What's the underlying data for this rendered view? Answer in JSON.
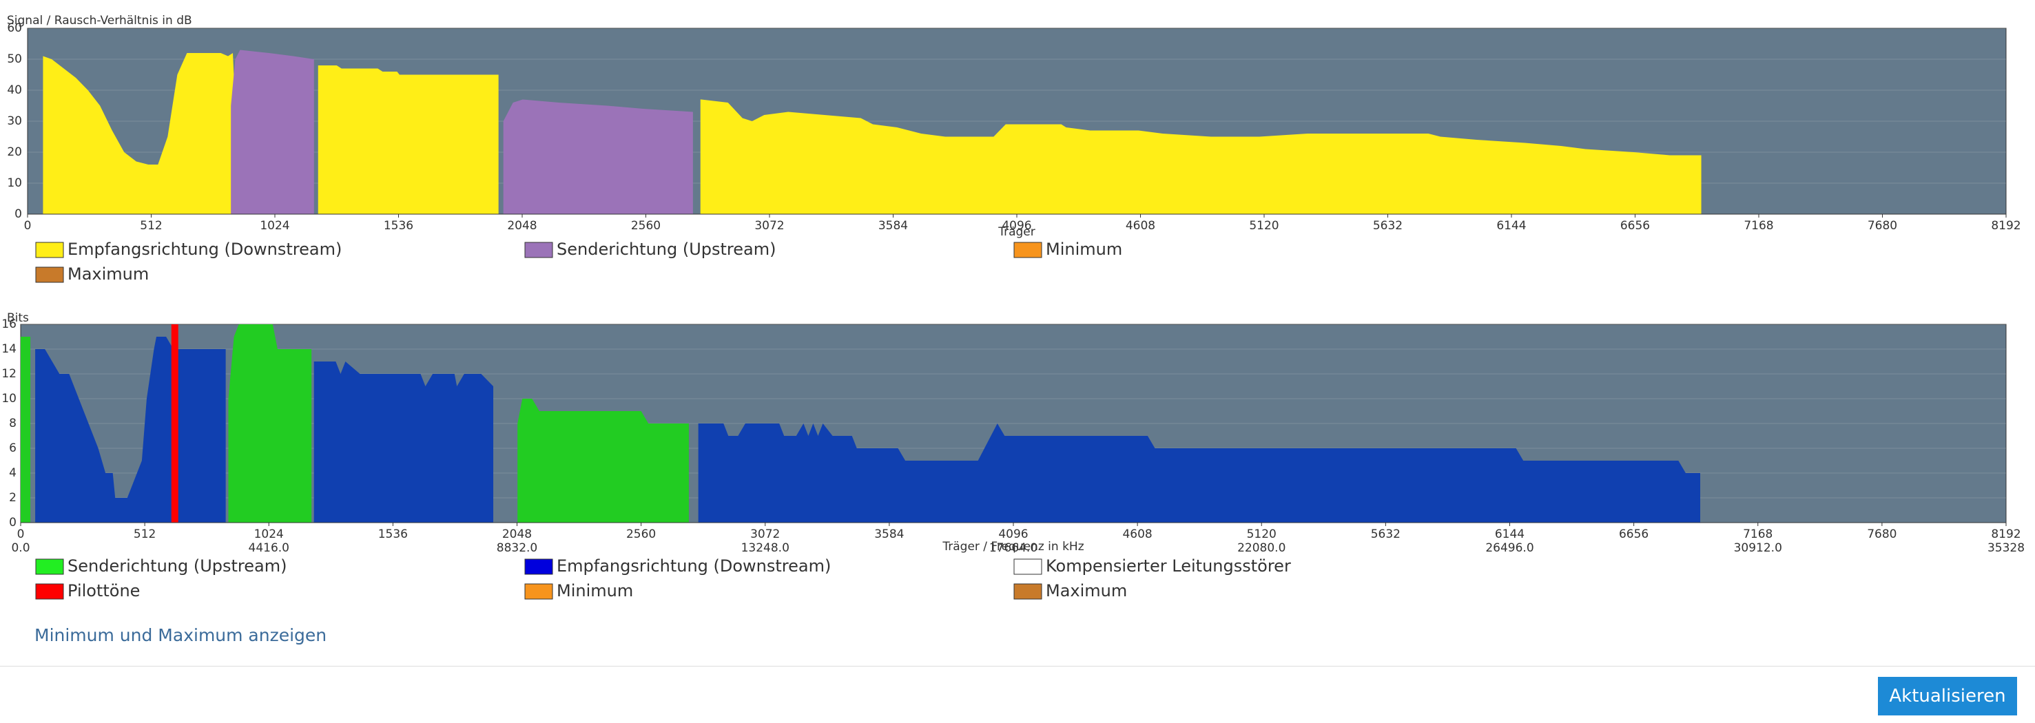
{
  "chart_data": [
    {
      "type": "area",
      "y_label": "Signal / Rausch-Verhältnis in dB",
      "x_label": "Träger",
      "xlim": [
        0,
        8192
      ],
      "xticks": [
        0,
        512,
        1024,
        1536,
        2048,
        2560,
        3072,
        3584,
        4096,
        4608,
        5120,
        5632,
        6144,
        6656,
        7168,
        7680,
        8192
      ],
      "ylim": [
        0,
        60
      ],
      "yticks": [
        0,
        10,
        20,
        30,
        40,
        50,
        60
      ],
      "grid": true,
      "series": [
        {
          "name": "Empfangsrichtung (Downstream)",
          "color": "#ffee17",
          "x": [
            64,
            100,
            150,
            200,
            250,
            300,
            350,
            400,
            450,
            500,
            540,
            580,
            620,
            660,
            800,
            830,
            850,
            854,
            1028,
            1203,
            1210,
            1280,
            1300,
            1450,
            1470,
            1530,
            1540,
            1950,
            2370,
            2786,
            2790,
            2900,
            2960,
            3000,
            3050,
            3150,
            3300,
            3450,
            3500,
            3600,
            3700,
            3800,
            4000,
            4050,
            4280,
            4300,
            4400,
            4600,
            4700,
            4900,
            5100,
            5300,
            5800,
            5850,
            6000,
            6200,
            6350,
            6450,
            6650,
            6800,
            6930
          ],
          "values": [
            51,
            50,
            47,
            44,
            40,
            35,
            27,
            20,
            17,
            16,
            16,
            25,
            45,
            52,
            52,
            51,
            52,
            45,
            null,
            48,
            48,
            48,
            47,
            47,
            46,
            46,
            45,
            45,
            null,
            37,
            37,
            36,
            31,
            30,
            32,
            33,
            32,
            31,
            29,
            28,
            26,
            25,
            25,
            29,
            29,
            28,
            27,
            27,
            26,
            25,
            25,
            26,
            26,
            25,
            24,
            23,
            22,
            21,
            20,
            19,
            19
          ]
        },
        {
          "name": "Senderichtung (Upstream)",
          "color": "#9b73b8",
          "x": [
            842,
            860,
            880,
            1000,
            1100,
            1186,
            1578,
            1970,
            2010,
            2050,
            2200,
            2400,
            2550,
            2755
          ],
          "values": [
            35,
            50,
            53,
            52,
            51,
            50,
            null,
            30,
            36,
            37,
            36,
            35,
            34,
            33
          ]
        },
        {
          "name": "Minimum",
          "color": "#f7941d"
        },
        {
          "name": "Maximum",
          "color": "#c87a2a"
        }
      ]
    },
    {
      "type": "area",
      "y_label": "Bits",
      "x_label": "Träger / Frequenz in kHz",
      "xlim": [
        0,
        8192
      ],
      "xticks": [
        0,
        512,
        1024,
        1536,
        2048,
        2560,
        3072,
        3584,
        4096,
        4608,
        5120,
        5632,
        6144,
        6656,
        7168,
        7680,
        8192
      ],
      "x2lim": [
        0,
        35328
      ],
      "x2ticks": [
        {
          "value": 0,
          "label": "0.0"
        },
        {
          "value": 4416,
          "label": "4416.0"
        },
        {
          "value": 8832,
          "label": "8832.0"
        },
        {
          "value": 13248,
          "label": "13248.0"
        },
        {
          "value": 17664,
          "label": "17664.0"
        },
        {
          "value": 22080,
          "label": "22080.0"
        },
        {
          "value": 26496,
          "label": "26496.0"
        },
        {
          "value": 30912,
          "label": "30912.0"
        },
        35328
      ],
      "ylim": [
        0,
        16
      ],
      "yticks": [
        0,
        2,
        4,
        6,
        8,
        10,
        12,
        14,
        16
      ],
      "grid": true,
      "series": [
        {
          "name": "Senderichtung (Upstream)",
          "color": "#22cc22",
          "legend_color": "#22ee22",
          "x": [
            0,
            40,
            450,
            857,
            880,
            900,
            1040,
            1060,
            1200,
            1625,
            2050,
            2070,
            2110,
            2140,
            2560,
            2590,
            2757
          ],
          "values": [
            15,
            15,
            null,
            10,
            15,
            16,
            16,
            14,
            14,
            null,
            8,
            10,
            10,
            9,
            9,
            8,
            8
          ]
        },
        {
          "name": "Empfangsrichtung (Downstream)",
          "color": "#1040b0",
          "legend_color": "#0000dd",
          "x": [
            60,
            100,
            130,
            160,
            200,
            240,
            280,
            320,
            350,
            380,
            390,
            440,
            480,
            500,
            520,
            550,
            560,
            600,
            630,
            846,
            1028,
            1210,
            1300,
            1320,
            1340,
            1400,
            1650,
            1670,
            1700,
            1790,
            1800,
            1830,
            1900,
            1950,
            2373,
            2796,
            2900,
            2920,
            2960,
            2990,
            3130,
            3150,
            3200,
            3230,
            3250,
            3270,
            3290,
            3310,
            3350,
            3430,
            3450,
            3620,
            3650,
            3950,
            4030,
            4060,
            4650,
            4680,
            6170,
            6200,
            6840,
            6870,
            6930
          ],
          "values": [
            14,
            14,
            13,
            12,
            12,
            10,
            8,
            6,
            4,
            4,
            2,
            2,
            4,
            5,
            10,
            14,
            15,
            15,
            14,
            14,
            null,
            13,
            13,
            12,
            13,
            12,
            12,
            11,
            12,
            12,
            11,
            12,
            12,
            11,
            null,
            8,
            8,
            7,
            7,
            8,
            8,
            7,
            7,
            8,
            7,
            8,
            7,
            8,
            7,
            7,
            6,
            6,
            5,
            5,
            8,
            7,
            7,
            6,
            6,
            5,
            5,
            4,
            4
          ]
        },
        {
          "name": "Kompensierter Leitungsstörer",
          "color": "#ffffff"
        },
        {
          "name": "Pilottöne",
          "color": "#ff0000",
          "type": "bar",
          "x": [
            636
          ],
          "values": [
            16
          ]
        },
        {
          "name": "Minimum",
          "color": "#f7941d"
        },
        {
          "name": "Maximum",
          "color": "#c87a2a"
        }
      ]
    }
  ],
  "ui": {
    "link": "Minimum und Maximum anzeigen",
    "button": "Aktualisieren"
  }
}
